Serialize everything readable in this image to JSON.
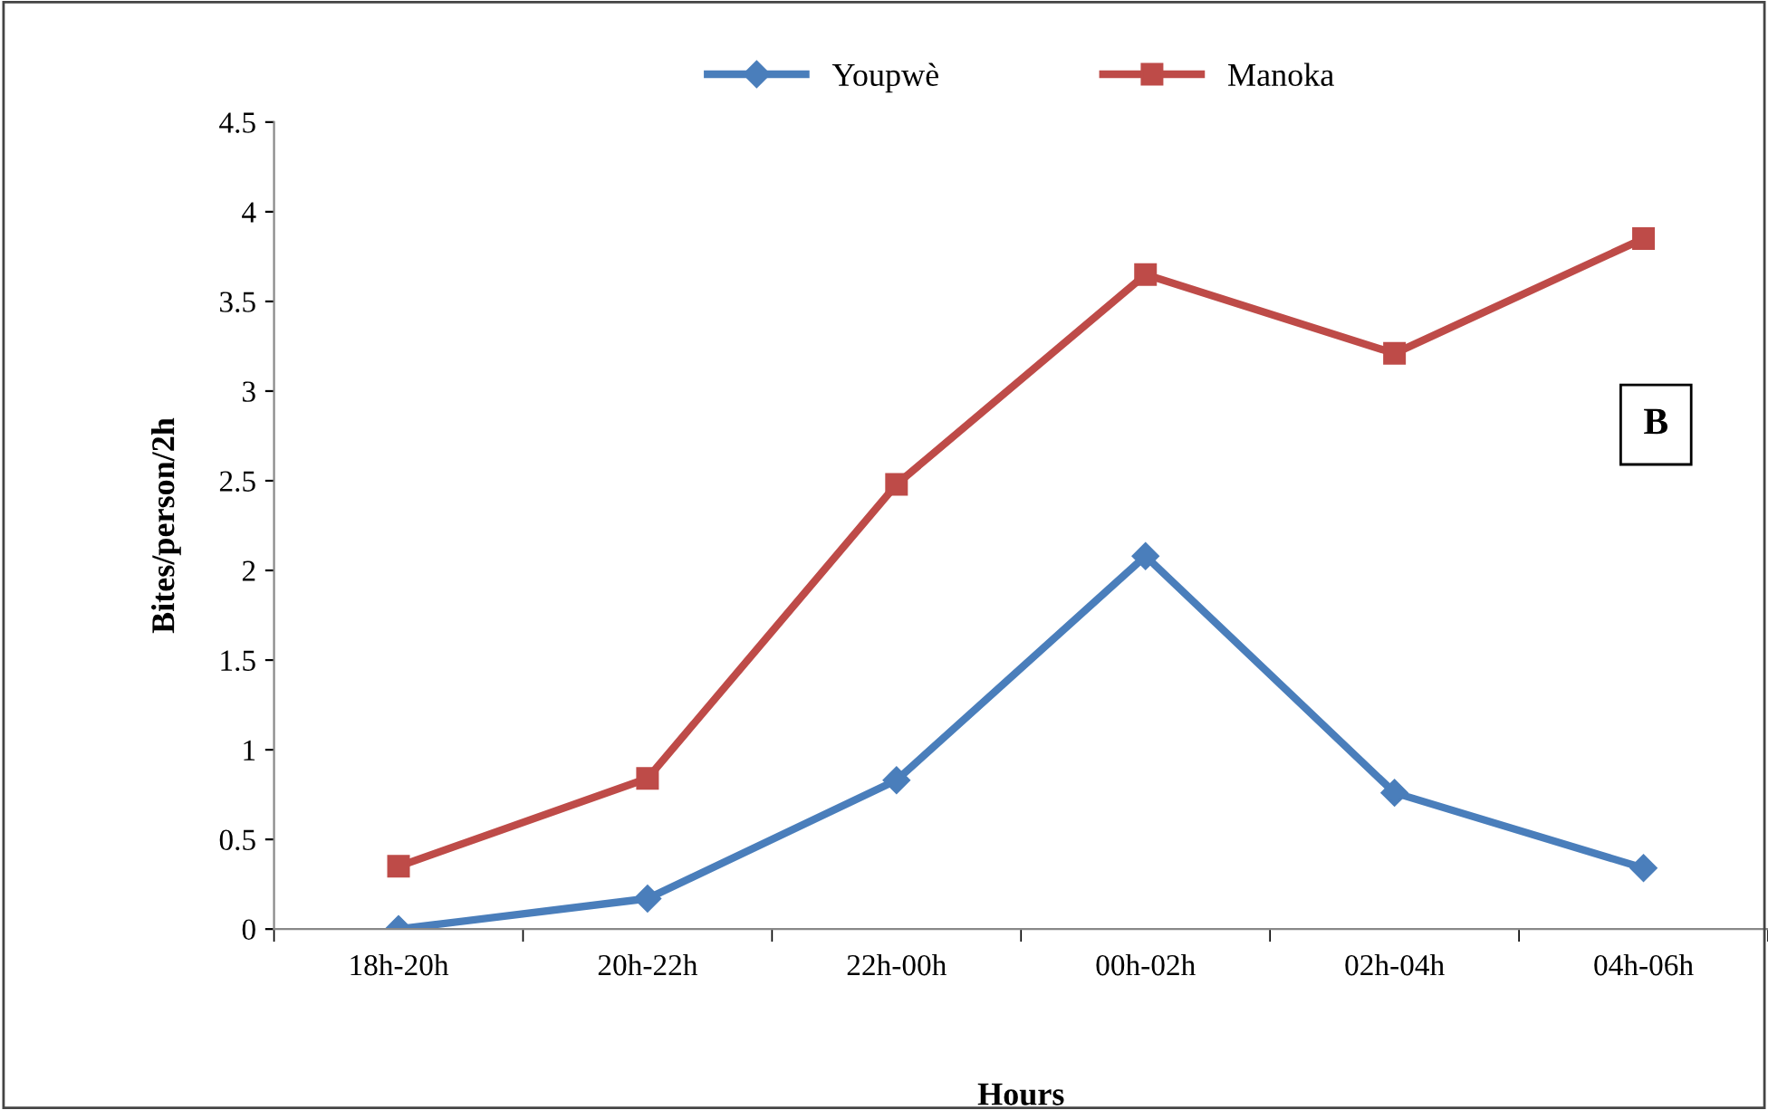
{
  "chart_data": {
    "type": "line",
    "xlabel": "Hours",
    "ylabel": "Bites/person/2h",
    "categories": [
      "18h-20h",
      "20h-22h",
      "22h-00h",
      "00h-02h",
      "02h-04h",
      "04h-06h"
    ],
    "series": [
      {
        "name": "Youpwè",
        "color": "#4a7ebb",
        "marker": "diamond",
        "values": [
          0,
          0.17,
          0.83,
          2.08,
          0.76,
          0.34
        ]
      },
      {
        "name": "Manoka",
        "color": "#be4b48",
        "marker": "square",
        "values": [
          0.35,
          0.84,
          2.48,
          3.65,
          3.21,
          3.85
        ]
      }
    ],
    "ylim": [
      0,
      4.5
    ],
    "yticks": [
      0,
      0.5,
      1,
      1.5,
      2,
      2.5,
      3,
      3.5,
      4,
      4.5
    ],
    "grid": false,
    "legend": "top",
    "line_style": "solid",
    "annotations": [
      "B"
    ]
  }
}
